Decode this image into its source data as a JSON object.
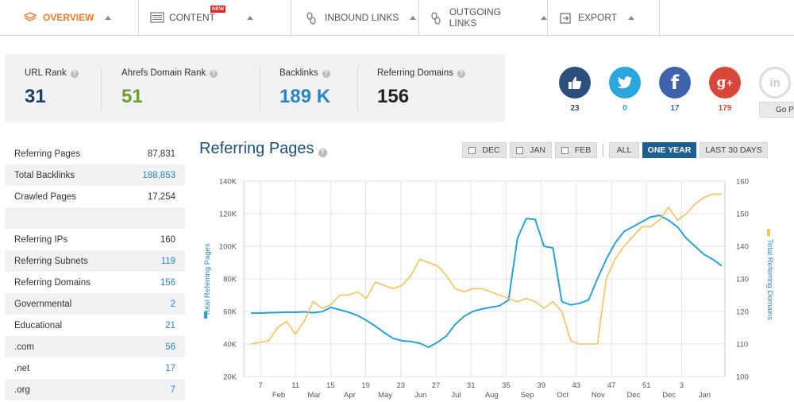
{
  "nav": {
    "items": [
      {
        "label": "OVERVIEW",
        "icon": "layers-icon"
      },
      {
        "label": "CONTENT",
        "icon": "content-icon",
        "badge": "NEW"
      },
      {
        "label": "INBOUND LINKS",
        "icon": "inbound-links-icon"
      },
      {
        "label": "OUTGOING LINKS",
        "icon": "outgoing-links-icon"
      },
      {
        "label": "EXPORT",
        "icon": "export-icon"
      }
    ]
  },
  "metrics": [
    {
      "label": "URL Rank",
      "value": "31",
      "color": "#1d3f66"
    },
    {
      "label": "Ahrefs Domain Rank",
      "value": "51",
      "color": "#6aa02b"
    },
    {
      "label": "Backlinks",
      "value": "189 K",
      "color": "#2a86c1"
    },
    {
      "label": "Referring Domains",
      "value": "156",
      "color": "#222222"
    }
  ],
  "social": [
    {
      "name": "like",
      "icon": "thumbs-up-icon",
      "glyph": "👍",
      "count": "23",
      "color": "#2d4f7c",
      "count_color": "#2d4f7c"
    },
    {
      "name": "twitter",
      "icon": "twitter-icon",
      "glyph": "t",
      "count": "0",
      "color": "#2ba6df",
      "count_color": "#2ba6df"
    },
    {
      "name": "facebook",
      "icon": "facebook-icon",
      "glyph": "f",
      "count": "17",
      "color": "#3f63ad",
      "count_color": "#3f63ad"
    },
    {
      "name": "google-plus",
      "icon": "google-plus-icon",
      "glyph": "g+",
      "count": "179",
      "color": "#d9473a",
      "count_color": "#d9473a"
    },
    {
      "name": "linkedin",
      "icon": "linkedin-icon",
      "glyph": "in",
      "count": "",
      "color": "#d7d7d7",
      "count_color": "#999999"
    }
  ],
  "gopro_label": "Go P",
  "stats": [
    {
      "label": "Referring Pages",
      "value": "87,831",
      "blue": false
    },
    {
      "label": "Total Backlinks",
      "value": "188,853",
      "blue": true
    },
    {
      "label": "Crawled Pages",
      "value": "17,254",
      "blue": false
    },
    {
      "label": "",
      "value": "",
      "blue": false
    },
    {
      "label": "Referring IPs",
      "value": "160",
      "blue": false
    },
    {
      "label": "Referring Subnets",
      "value": "119",
      "blue": true
    },
    {
      "label": "Referring Domains",
      "value": "156",
      "blue": true
    },
    {
      "label": "Governmental",
      "value": "2",
      "blue": true
    },
    {
      "label": "Educational",
      "value": "21",
      "blue": true
    },
    {
      "label": ".com",
      "value": "56",
      "blue": true
    },
    {
      "label": ".net",
      "value": "17",
      "blue": true
    },
    {
      "label": ".org",
      "value": "7",
      "blue": true
    }
  ],
  "chart_header": {
    "title": "Referring Pages",
    "filters": [
      {
        "label": "DEC",
        "checkbox": true
      },
      {
        "label": "JAN",
        "checkbox": true
      },
      {
        "label": "FEB",
        "checkbox": true
      },
      {
        "label": "ALL",
        "checkbox": false
      },
      {
        "label": "ONE YEAR",
        "checkbox": false,
        "active": true
      },
      {
        "label": "LAST 30 DAYS",
        "checkbox": false
      }
    ]
  },
  "chart_data": {
    "type": "line",
    "ylabel_left": "Total Referring Pages",
    "ylabel_right": "Total Referring Domains",
    "ylim_left": [
      20000,
      140000
    ],
    "ylim_right": [
      100,
      160
    ],
    "left_ticks": [
      "20K",
      "40K",
      "60K",
      "80K",
      "100K",
      "120K",
      "140K"
    ],
    "right_ticks": [
      "100",
      "110",
      "120",
      "130",
      "140",
      "150",
      "160"
    ],
    "week_ticks": [
      "7",
      "11",
      "15",
      "19",
      "23",
      "27",
      "31",
      "35",
      "39",
      "43",
      "47",
      "51",
      "3"
    ],
    "month_ticks": [
      "Feb",
      "Mar",
      "Apr",
      "May",
      "Jun",
      "Jul",
      "Aug",
      "Sep",
      "Oct",
      "Nov",
      "Dec",
      "Dec",
      "Jan"
    ],
    "series": [
      {
        "name": "Total Referring Pages",
        "axis": "left",
        "color": "#2aa2d8",
        "values": [
          59000,
          59000,
          59200,
          59300,
          59500,
          59500,
          59700,
          59200,
          59800,
          62500,
          61000,
          59500,
          57500,
          54500,
          51000,
          47000,
          43500,
          42000,
          41500,
          40500,
          38000,
          41000,
          45000,
          52000,
          57000,
          60000,
          61500,
          62500,
          63500,
          67000,
          105000,
          117000,
          116500,
          100000,
          99000,
          66000,
          64000,
          65000,
          67000,
          80000,
          92000,
          102000,
          109000,
          112000,
          115000,
          118000,
          119000,
          116000,
          112000,
          105000,
          100000,
          95000,
          92000,
          88000
        ]
      },
      {
        "name": "Total Referring Domains",
        "axis": "right",
        "color": "#f8c15c",
        "values": [
          110,
          110.5,
          111,
          115,
          117,
          113,
          117,
          123,
          121,
          122,
          125,
          125,
          126,
          124,
          129,
          128,
          127,
          128,
          131,
          136,
          135,
          134,
          131,
          127,
          126,
          127,
          127,
          126,
          125,
          124,
          123,
          124,
          123,
          121,
          123,
          120,
          111,
          110,
          110,
          110,
          130,
          136,
          140,
          143,
          146,
          146,
          148,
          152,
          148,
          150,
          153,
          155,
          156,
          156
        ]
      }
    ]
  }
}
